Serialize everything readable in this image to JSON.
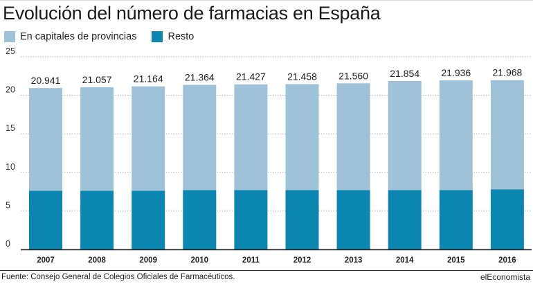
{
  "chart_data": {
    "type": "bar",
    "stacked": true,
    "title": "Evolución del número de farmacias en España",
    "categories": [
      "2007",
      "2008",
      "2009",
      "2010",
      "2011",
      "2012",
      "2013",
      "2014",
      "2015",
      "2016"
    ],
    "series": [
      {
        "name": "Resto",
        "color": "#0a86b0",
        "values": [
          7.6,
          7.6,
          7.6,
          7.7,
          7.7,
          7.7,
          7.7,
          7.7,
          7.7,
          7.8
        ]
      },
      {
        "name": "En capitales de provincias",
        "color": "#9fc2d8",
        "values": [
          13.341,
          13.457,
          13.564,
          13.664,
          13.727,
          13.758,
          13.86,
          14.154,
          14.236,
          14.168
        ]
      }
    ],
    "totals": [
      20.941,
      21.057,
      21.164,
      21.364,
      21.427,
      21.458,
      21.56,
      21.854,
      21.936,
      21.968
    ],
    "total_labels": [
      "20.941",
      "21.057",
      "21.164",
      "21.364",
      "21.427",
      "21.458",
      "21.560",
      "21.854",
      "21.936",
      "21.968"
    ],
    "yticks": [
      "0",
      "5",
      "10",
      "15",
      "20",
      "25"
    ],
    "ylim": [
      0,
      25
    ],
    "grid": true,
    "legend_position": "top-left",
    "xlabel": "",
    "ylabel": ""
  },
  "source": "Fuente: Consejo General de Colegios Oficiales de Farmacéuticos.",
  "brand": "elEconomista"
}
